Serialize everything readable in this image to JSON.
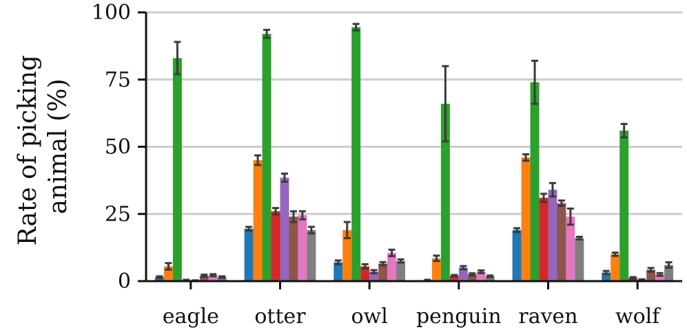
{
  "chart_data": {
    "type": "bar",
    "ylabel": "Rate of picking animal (%)",
    "ylabel_lines": [
      "Rate of picking",
      "animal (%)"
    ],
    "ylim": [
      0,
      100
    ],
    "yticks": [
      0,
      25,
      50,
      75,
      100
    ],
    "grid": "horizontal",
    "legend": "none",
    "categories": [
      "eagle",
      "otter",
      "owl",
      "penguin",
      "raven",
      "wolf"
    ],
    "error_bars": true,
    "series": [
      {
        "color": "#1f77b4",
        "values": [
          1.5,
          19.5,
          7,
          0.3,
          19,
          3.2
        ],
        "errors": [
          0.3,
          0.7,
          0.7,
          0.2,
          0.7,
          0.6
        ]
      },
      {
        "color": "#ff7f0e",
        "values": [
          5.5,
          45,
          19,
          8.5,
          46,
          10
        ],
        "errors": [
          1.2,
          1.8,
          3,
          1,
          1.2,
          0.6
        ]
      },
      {
        "color": "#2ca02c",
        "values": [
          83,
          92,
          94.5,
          66,
          74,
          56
        ],
        "errors": [
          6,
          1.5,
          1.2,
          14,
          8,
          2.5
        ]
      },
      {
        "color": "#d62728",
        "values": [
          0.3,
          26,
          5.5,
          2,
          31,
          1.2
        ],
        "errors": [
          0.2,
          1.2,
          0.8,
          0.3,
          1.5,
          0.3
        ]
      },
      {
        "color": "#9467bd",
        "values": [
          0.2,
          38.5,
          3.5,
          5,
          34,
          0.5
        ],
        "errors": [
          0.1,
          1.5,
          0.6,
          0.6,
          2.5,
          0.2
        ]
      },
      {
        "color": "#8c564b",
        "values": [
          2,
          24,
          6.5,
          2.5,
          29,
          4.2
        ],
        "errors": [
          0.4,
          2,
          0.6,
          0.4,
          1,
          0.7
        ]
      },
      {
        "color": "#e377c2",
        "values": [
          2.2,
          24.5,
          10.5,
          3.5,
          24,
          2.5
        ],
        "errors": [
          0.4,
          1.5,
          1.2,
          0.5,
          3,
          0.5
        ]
      },
      {
        "color": "#7f7f7f",
        "values": [
          1.5,
          19,
          7.5,
          1.8,
          16,
          6
        ],
        "errors": [
          0.3,
          1.2,
          0.6,
          0.3,
          0.5,
          1
        ]
      }
    ]
  }
}
